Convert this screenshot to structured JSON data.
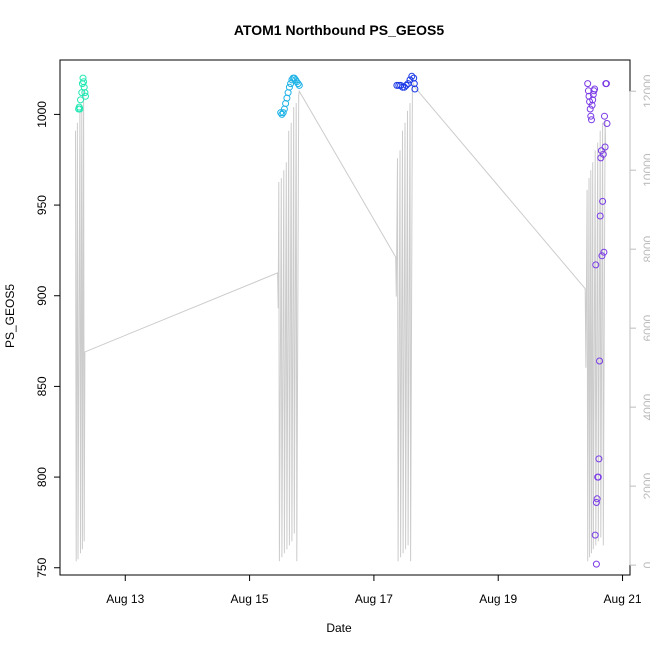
{
  "chart_data": {
    "type": "scatter",
    "title": "ATOM1 Northbound PS_GEOS5",
    "xlabel": "Date",
    "ylabel": "PS_GEOS5",
    "x_ticks": [
      {
        "day": 13,
        "label": "Aug 13"
      },
      {
        "day": 15,
        "label": "Aug 15"
      },
      {
        "day": 17,
        "label": "Aug 17"
      },
      {
        "day": 19,
        "label": "Aug 19"
      },
      {
        "day": 21,
        "label": "Aug 21"
      }
    ],
    "x_range_days": [
      11.95,
      21.12
    ],
    "ylim_left": [
      746,
      1030
    ],
    "yticks_left": [
      750,
      800,
      850,
      900,
      950,
      1000
    ],
    "ylim_right": [
      -250,
      12790
    ],
    "yticks_right": [
      0,
      2000,
      4000,
      6000,
      8000,
      10000,
      12000
    ],
    "grid": false,
    "legend": "none",
    "colors": {
      "axis": "#000000",
      "right_axis": "#bdbdbd",
      "altitude_line": "#cccccc",
      "flight_colors": [
        "#22e8b4",
        "#1fb3e6",
        "#1c39e6",
        "#7a3be6"
      ]
    },
    "series": [
      {
        "flight_index": 0,
        "points": [
          [
            12.25,
            1003
          ],
          [
            12.26,
            1004
          ],
          [
            12.27,
            1003
          ],
          [
            12.28,
            1008
          ],
          [
            12.3,
            1012
          ],
          [
            12.31,
            1017
          ],
          [
            12.32,
            1020
          ],
          [
            12.33,
            1018
          ],
          [
            12.34,
            1015
          ],
          [
            12.35,
            1012
          ],
          [
            12.36,
            1010
          ]
        ]
      },
      {
        "flight_index": 1,
        "points": [
          [
            15.5,
            1001
          ],
          [
            15.52,
            1000
          ],
          [
            15.54,
            1001
          ],
          [
            15.56,
            1003
          ],
          [
            15.58,
            1006
          ],
          [
            15.6,
            1009
          ],
          [
            15.62,
            1012
          ],
          [
            15.64,
            1015
          ],
          [
            15.66,
            1017
          ],
          [
            15.68,
            1019
          ],
          [
            15.7,
            1020
          ],
          [
            15.72,
            1020
          ],
          [
            15.74,
            1019
          ],
          [
            15.76,
            1018
          ],
          [
            15.78,
            1017
          ],
          [
            15.8,
            1016
          ]
        ]
      },
      {
        "flight_index": 2,
        "points": [
          [
            17.37,
            1016
          ],
          [
            17.4,
            1016
          ],
          [
            17.43,
            1016
          ],
          [
            17.46,
            1015
          ],
          [
            17.49,
            1015
          ],
          [
            17.52,
            1016
          ],
          [
            17.55,
            1017
          ],
          [
            17.58,
            1019
          ],
          [
            17.61,
            1021
          ],
          [
            17.64,
            1020
          ],
          [
            17.65,
            1017
          ],
          [
            17.66,
            1014
          ]
        ]
      },
      {
        "flight_index": 3,
        "points": [
          [
            20.44,
            1017
          ],
          [
            20.45,
            1013
          ],
          [
            20.46,
            1010
          ],
          [
            20.47,
            1007
          ],
          [
            20.48,
            1003
          ],
          [
            20.49,
            999
          ],
          [
            20.5,
            997
          ],
          [
            20.51,
            1005
          ],
          [
            20.52,
            1008
          ],
          [
            20.53,
            1011
          ],
          [
            20.54,
            1013
          ],
          [
            20.55,
            1014
          ],
          [
            20.57,
            917
          ],
          [
            20.58,
            786
          ],
          [
            20.59,
            788
          ],
          [
            20.6,
            800
          ],
          [
            20.61,
            800
          ],
          [
            20.62,
            810
          ],
          [
            20.63,
            864
          ],
          [
            20.64,
            944
          ],
          [
            20.65,
            976
          ],
          [
            20.66,
            980
          ],
          [
            20.67,
            922
          ],
          [
            20.68,
            952
          ],
          [
            20.69,
            978
          ],
          [
            20.7,
            924
          ],
          [
            20.71,
            999
          ],
          [
            20.72,
            982
          ],
          [
            20.73,
            1017
          ],
          [
            20.74,
            1017
          ],
          [
            20.75,
            995
          ],
          [
            20.56,
            768
          ],
          [
            20.58,
            752
          ]
        ]
      }
    ],
    "altitude_line": [
      [
        12.2,
        11000
      ],
      [
        12.21,
        100
      ],
      [
        12.23,
        11200
      ],
      [
        12.24,
        150
      ],
      [
        12.27,
        11500
      ],
      [
        12.28,
        300
      ],
      [
        12.3,
        11600
      ],
      [
        12.31,
        400
      ],
      [
        12.33,
        12000
      ],
      [
        12.34,
        600
      ],
      [
        12.35,
        5400
      ],
      [
        15.45,
        7400
      ],
      [
        15.46,
        6500
      ],
      [
        15.47,
        9700
      ],
      [
        15.48,
        100
      ],
      [
        15.51,
        9800
      ],
      [
        15.52,
        200
      ],
      [
        15.55,
        10000
      ],
      [
        15.56,
        300
      ],
      [
        15.59,
        10200
      ],
      [
        15.6,
        400
      ],
      [
        15.63,
        11000
      ],
      [
        15.64,
        500
      ],
      [
        15.67,
        11200
      ],
      [
        15.68,
        600
      ],
      [
        15.71,
        11600
      ],
      [
        15.72,
        800
      ],
      [
        15.75,
        11700
      ],
      [
        15.76,
        100
      ],
      [
        15.79,
        11900
      ],
      [
        15.8,
        12000
      ],
      [
        17.35,
        7800
      ],
      [
        17.36,
        6800
      ],
      [
        17.38,
        10300
      ],
      [
        17.39,
        100
      ],
      [
        17.42,
        10500
      ],
      [
        17.43,
        200
      ],
      [
        17.46,
        11000
      ],
      [
        17.47,
        300
      ],
      [
        17.5,
        11200
      ],
      [
        17.51,
        400
      ],
      [
        17.54,
        11500
      ],
      [
        17.55,
        500
      ],
      [
        17.58,
        11700
      ],
      [
        17.59,
        100
      ],
      [
        17.62,
        12000
      ],
      [
        17.63,
        12200
      ],
      [
        17.66,
        12100
      ],
      [
        20.4,
        7000
      ],
      [
        20.41,
        5000
      ],
      [
        20.43,
        9500
      ],
      [
        20.44,
        100
      ],
      [
        20.46,
        9800
      ],
      [
        20.47,
        200
      ],
      [
        20.49,
        10000
      ],
      [
        20.5,
        300
      ],
      [
        20.52,
        10200
      ],
      [
        20.53,
        400
      ],
      [
        20.56,
        10500
      ],
      [
        20.57,
        500
      ],
      [
        20.6,
        10700
      ],
      [
        20.61,
        600
      ],
      [
        20.64,
        11000
      ],
      [
        20.65,
        700
      ],
      [
        20.68,
        11200
      ],
      [
        20.69,
        500
      ],
      [
        20.72,
        11300
      ],
      [
        20.73,
        10400
      ]
    ]
  }
}
